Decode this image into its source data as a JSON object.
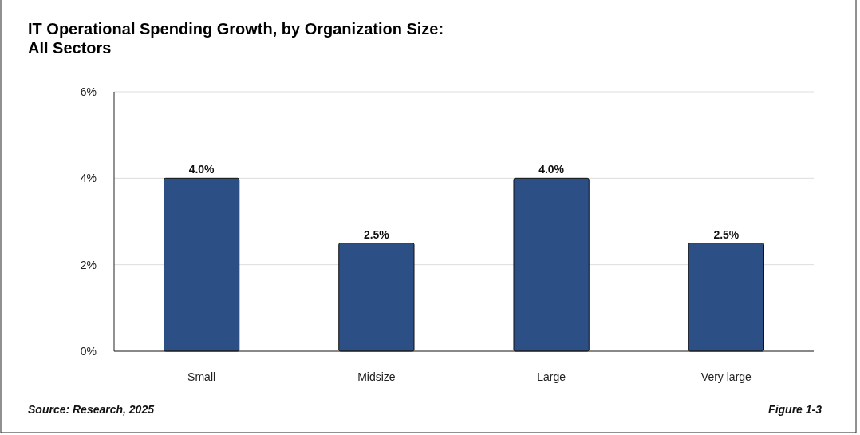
{
  "chart_data": {
    "type": "bar",
    "title": "IT Operational Spending Growth, by Organization Size:\nAll Sectors",
    "categories": [
      "Small",
      "Midsize",
      "Large",
      "Very large"
    ],
    "values": [
      4.0,
      2.5,
      4.0,
      2.5
    ],
    "value_labels": [
      "4.0%",
      "2.5%",
      "4.0%",
      "2.5%"
    ],
    "color": "#2c4f86",
    "ylim": [
      0,
      6
    ],
    "yticks": [
      {
        "value": 0,
        "label": "0%"
      },
      {
        "value": 2,
        "label": "2%"
      },
      {
        "value": 4,
        "label": "4%"
      },
      {
        "value": 6,
        "label": "6%"
      }
    ],
    "grid": "y",
    "annotations": [
      "Source: Research, 2025",
      "Figure 1-3"
    ]
  }
}
